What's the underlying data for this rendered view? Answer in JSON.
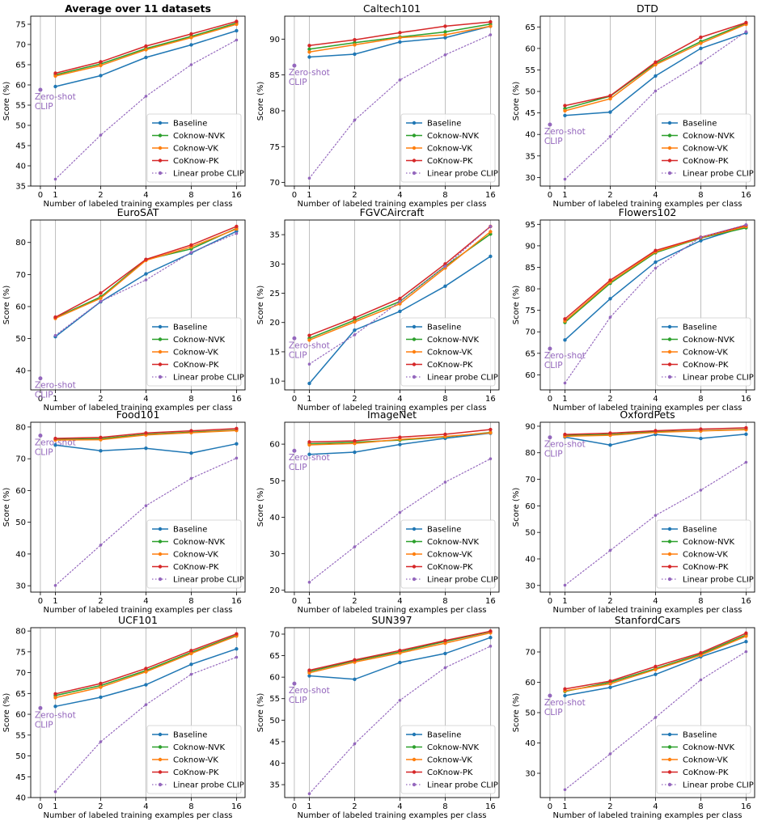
{
  "figure": {
    "xlabel": "Number of labeled training examples per class",
    "ylabel": "Score (%)",
    "x_ticks": [
      0,
      1,
      2,
      4,
      8,
      16
    ],
    "zero_shot_label_line1": "Zero-shot",
    "zero_shot_label_line2": "CLIP",
    "colors": {
      "Baseline": "#1f77b4",
      "Coknow-NVK": "#2ca02c",
      "Coknow-VK": "#ff7f0e",
      "CoKnow-PK": "#d62728",
      "Linear probe CLIP": "#9467bd"
    }
  },
  "chart_data": [
    {
      "type": "line",
      "title": "Average over 11 datasets",
      "title_bold": true,
      "x": [
        1,
        2,
        4,
        8,
        16
      ],
      "ylim": [
        35,
        77
      ],
      "yticks": [
        35,
        40,
        45,
        50,
        55,
        60,
        65,
        70,
        75
      ],
      "zero_shot": 58.8,
      "series": [
        {
          "name": "Baseline",
          "values": [
            59.6,
            62.3,
            66.8,
            69.9,
            73.4
          ]
        },
        {
          "name": "Coknow-NVK",
          "values": [
            62.5,
            65.2,
            69.0,
            72.0,
            75.3
          ]
        },
        {
          "name": "Coknow-VK",
          "values": [
            62.2,
            64.8,
            68.7,
            71.7,
            75.0
          ]
        },
        {
          "name": "CoKnow-PK",
          "values": [
            62.9,
            65.7,
            69.6,
            72.6,
            75.7
          ]
        },
        {
          "name": "Linear probe CLIP",
          "values": [
            36.7,
            47.6,
            57.2,
            65.0,
            71.1
          ]
        }
      ]
    },
    {
      "type": "line",
      "title": "Caltech101",
      "x": [
        1,
        2,
        4,
        8,
        16
      ],
      "ylim": [
        69.5,
        93.2
      ],
      "yticks": [
        70,
        75,
        80,
        85,
        90
      ],
      "zero_shot": 86.3,
      "series": [
        {
          "name": "Baseline",
          "values": [
            87.5,
            87.9,
            89.6,
            90.2,
            91.8
          ]
        },
        {
          "name": "Coknow-NVK",
          "values": [
            88.6,
            89.5,
            90.3,
            91.0,
            92.1
          ]
        },
        {
          "name": "Coknow-VK",
          "values": [
            88.2,
            89.2,
            90.2,
            90.6,
            91.8
          ]
        },
        {
          "name": "CoKnow-PK",
          "values": [
            89.1,
            89.9,
            90.9,
            91.8,
            92.4
          ]
        },
        {
          "name": "Linear probe CLIP",
          "values": [
            70.6,
            78.7,
            84.3,
            87.8,
            90.6
          ]
        }
      ]
    },
    {
      "type": "line",
      "title": "DTD",
      "x": [
        1,
        2,
        4,
        8,
        16
      ],
      "ylim": [
        28,
        67.5
      ],
      "yticks": [
        30,
        35,
        40,
        45,
        50,
        55,
        60,
        65
      ],
      "zero_shot": 42.3,
      "series": [
        {
          "name": "Baseline",
          "values": [
            44.4,
            45.2,
            53.6,
            60.0,
            63.6
          ]
        },
        {
          "name": "Coknow-NVK",
          "values": [
            46.0,
            48.9,
            56.5,
            61.6,
            65.8
          ]
        },
        {
          "name": "Coknow-VK",
          "values": [
            45.5,
            48.3,
            56.2,
            61.2,
            65.6
          ]
        },
        {
          "name": "CoKnow-PK",
          "values": [
            46.7,
            49.0,
            56.8,
            62.6,
            66.0
          ]
        },
        {
          "name": "Linear probe CLIP",
          "values": [
            29.6,
            39.5,
            50.1,
            56.6,
            63.9
          ]
        }
      ]
    },
    {
      "type": "line",
      "title": "EuroSAT",
      "x": [
        1,
        2,
        4,
        8,
        16
      ],
      "ylim": [
        34,
        87
      ],
      "yticks": [
        40,
        50,
        60,
        70,
        80
      ],
      "zero_shot": 37.6,
      "series": [
        {
          "name": "Baseline",
          "values": [
            50.6,
            61.5,
            70.2,
            76.7,
            83.5
          ]
        },
        {
          "name": "Coknow-NVK",
          "values": [
            56.5,
            63.0,
            74.6,
            78.0,
            84.4
          ]
        },
        {
          "name": "Coknow-VK",
          "values": [
            56.3,
            62.6,
            74.4,
            78.6,
            84.2
          ]
        },
        {
          "name": "CoKnow-PK",
          "values": [
            56.7,
            64.2,
            74.7,
            79.2,
            85.0
          ]
        },
        {
          "name": "Linear probe CLIP",
          "values": [
            51.0,
            61.6,
            68.3,
            76.9,
            82.8
          ]
        }
      ]
    },
    {
      "type": "line",
      "title": "FGVCAircraft",
      "x": [
        1,
        2,
        4,
        8,
        16
      ],
      "ylim": [
        8.5,
        37.5
      ],
      "yticks": [
        10,
        15,
        20,
        25,
        30,
        35
      ],
      "zero_shot": 17.3,
      "series": [
        {
          "name": "Baseline",
          "values": [
            9.6,
            18.7,
            21.9,
            26.2,
            31.3
          ]
        },
        {
          "name": "Coknow-NVK",
          "values": [
            17.3,
            20.4,
            23.6,
            29.6,
            35.1
          ]
        },
        {
          "name": "Coknow-VK",
          "values": [
            17.0,
            20.1,
            23.2,
            29.3,
            35.5
          ]
        },
        {
          "name": "CoKnow-PK",
          "values": [
            17.8,
            20.8,
            24.1,
            30.0,
            36.4
          ]
        },
        {
          "name": "Linear probe CLIP",
          "values": [
            12.9,
            17.9,
            23.6,
            29.6,
            36.4
          ]
        }
      ]
    },
    {
      "type": "line",
      "title": "Flowers102",
      "x": [
        1,
        2,
        4,
        8,
        16
      ],
      "ylim": [
        56.5,
        96
      ],
      "yticks": [
        60,
        65,
        70,
        75,
        80,
        85,
        90,
        95
      ],
      "zero_shot": 66.1,
      "series": [
        {
          "name": "Baseline",
          "values": [
            68.1,
            77.7,
            86.2,
            91.2,
            94.5
          ]
        },
        {
          "name": "Coknow-NVK",
          "values": [
            72.2,
            81.3,
            88.4,
            91.8,
            94.2
          ]
        },
        {
          "name": "Coknow-VK",
          "values": [
            72.5,
            81.6,
            88.6,
            91.9,
            94.5
          ]
        },
        {
          "name": "CoKnow-PK",
          "values": [
            73.0,
            82.0,
            88.9,
            92.0,
            94.8
          ]
        },
        {
          "name": "Linear probe CLIP",
          "values": [
            58.1,
            73.4,
            84.8,
            92.0,
            94.9
          ]
        }
      ]
    },
    {
      "type": "line",
      "title": "Food101",
      "x": [
        1,
        2,
        4,
        8,
        16
      ],
      "ylim": [
        28,
        81.5
      ],
      "yticks": [
        30,
        40,
        50,
        60,
        70,
        80
      ],
      "zero_shot": 77.3,
      "series": [
        {
          "name": "Baseline",
          "values": [
            74.3,
            72.5,
            73.3,
            71.8,
            74.7
          ]
        },
        {
          "name": "Coknow-NVK",
          "values": [
            76.1,
            76.3,
            77.7,
            78.4,
            79.0
          ]
        },
        {
          "name": "Coknow-VK",
          "values": [
            75.9,
            76.0,
            77.5,
            78.2,
            78.9
          ]
        },
        {
          "name": "CoKnow-PK",
          "values": [
            76.4,
            76.7,
            78.1,
            78.8,
            79.5
          ]
        },
        {
          "name": "Linear probe CLIP",
          "values": [
            30.1,
            42.8,
            55.2,
            63.8,
            70.2
          ]
        }
      ]
    },
    {
      "type": "line",
      "title": "ImageNet",
      "x": [
        1,
        2,
        4,
        8,
        16
      ],
      "ylim": [
        19.5,
        66
      ],
      "yticks": [
        20,
        30,
        40,
        50,
        60
      ],
      "zero_shot": 58.2,
      "series": [
        {
          "name": "Baseline",
          "values": [
            57.2,
            57.8,
            59.9,
            61.6,
            63.0
          ]
        },
        {
          "name": "Coknow-NVK",
          "values": [
            60.1,
            60.5,
            61.1,
            62.0,
            63.2
          ]
        },
        {
          "name": "Coknow-VK",
          "values": [
            59.8,
            60.2,
            61.3,
            62.1,
            63.1
          ]
        },
        {
          "name": "CoKnow-PK",
          "values": [
            60.6,
            60.9,
            61.9,
            62.7,
            64.0
          ]
        },
        {
          "name": "Linear probe CLIP",
          "values": [
            22.2,
            31.9,
            41.3,
            49.6,
            56.0
          ]
        }
      ]
    },
    {
      "type": "line",
      "title": "OxfordPets",
      "x": [
        1,
        2,
        4,
        8,
        16
      ],
      "ylim": [
        27.5,
        91.5
      ],
      "yticks": [
        30,
        40,
        50,
        60,
        70,
        80,
        90
      ],
      "zero_shot": 85.8,
      "series": [
        {
          "name": "Baseline",
          "values": [
            85.9,
            82.9,
            86.9,
            85.4,
            87.0
          ]
        },
        {
          "name": "Coknow-NVK",
          "values": [
            86.5,
            86.9,
            87.9,
            88.3,
            88.8
          ]
        },
        {
          "name": "Coknow-VK",
          "values": [
            86.2,
            86.6,
            87.7,
            88.2,
            88.7
          ]
        },
        {
          "name": "CoKnow-PK",
          "values": [
            86.9,
            87.4,
            88.3,
            88.9,
            89.4
          ]
        },
        {
          "name": "Linear probe CLIP",
          "values": [
            30.1,
            43.2,
            56.4,
            65.9,
            76.4
          ]
        }
      ]
    },
    {
      "type": "line",
      "title": "UCF101",
      "x": [
        1,
        2,
        4,
        8,
        16
      ],
      "ylim": [
        40,
        80.8
      ],
      "yticks": [
        40,
        45,
        50,
        55,
        60,
        65,
        70,
        75,
        80
      ],
      "zero_shot": 61.5,
      "series": [
        {
          "name": "Baseline",
          "values": [
            61.9,
            64.1,
            67.1,
            72.0,
            75.7
          ]
        },
        {
          "name": "Coknow-NVK",
          "values": [
            64.5,
            66.9,
            70.5,
            74.9,
            79.0
          ]
        },
        {
          "name": "Coknow-VK",
          "values": [
            64.0,
            66.5,
            70.2,
            74.6,
            78.8
          ]
        },
        {
          "name": "CoKnow-PK",
          "values": [
            64.9,
            67.4,
            71.0,
            75.3,
            79.3
          ]
        },
        {
          "name": "Linear probe CLIP",
          "values": [
            41.4,
            53.4,
            62.3,
            69.6,
            73.7
          ]
        }
      ]
    },
    {
      "type": "line",
      "title": "SUN397",
      "x": [
        1,
        2,
        4,
        8,
        16
      ],
      "ylim": [
        32,
        71.5
      ],
      "yticks": [
        35,
        40,
        45,
        50,
        55,
        60,
        65,
        70
      ],
      "zero_shot": 58.5,
      "series": [
        {
          "name": "Baseline",
          "values": [
            60.3,
            59.5,
            63.4,
            65.5,
            69.2
          ]
        },
        {
          "name": "Coknow-NVK",
          "values": [
            61.3,
            63.8,
            65.9,
            68.3,
            70.6
          ]
        },
        {
          "name": "Coknow-VK",
          "values": [
            61.0,
            63.5,
            65.6,
            67.9,
            70.3
          ]
        },
        {
          "name": "CoKnow-PK",
          "values": [
            61.6,
            64.0,
            66.2,
            68.5,
            70.7
          ]
        },
        {
          "name": "Linear probe CLIP",
          "values": [
            32.9,
            44.5,
            54.6,
            62.2,
            67.2
          ]
        }
      ]
    },
    {
      "type": "line",
      "title": "StanfordCars",
      "x": [
        1,
        2,
        4,
        8,
        16
      ],
      "ylim": [
        22,
        78
      ],
      "yticks": [
        30,
        40,
        50,
        60,
        70
      ],
      "zero_shot": 55.6,
      "series": [
        {
          "name": "Baseline",
          "values": [
            55.6,
            58.3,
            62.6,
            68.4,
            73.4
          ]
        },
        {
          "name": "Coknow-NVK",
          "values": [
            57.0,
            60.0,
            64.5,
            69.3,
            75.6
          ]
        },
        {
          "name": "Coknow-VK",
          "values": [
            57.2,
            59.5,
            64.2,
            68.9,
            75.2
          ]
        },
        {
          "name": "CoKnow-PK",
          "values": [
            57.8,
            60.4,
            65.2,
            69.7,
            76.2
          ]
        },
        {
          "name": "Linear probe CLIP",
          "values": [
            24.6,
            36.4,
            48.4,
            60.8,
            70.1
          ]
        }
      ]
    }
  ]
}
